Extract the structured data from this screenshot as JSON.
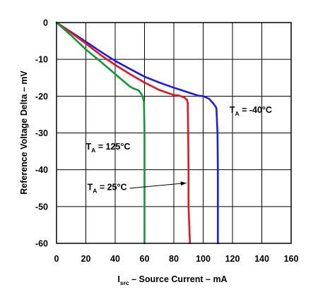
{
  "chart_data": {
    "type": "line",
    "title": "",
    "xlabel": {
      "main": "I",
      "sub": "src",
      "rest": " – Source Current – mA"
    },
    "ylabel": "Reference Voltage Delta – mV",
    "xlim": [
      0,
      160
    ],
    "ylim": [
      -60,
      0
    ],
    "xticks": [
      0,
      20,
      40,
      60,
      80,
      100,
      120,
      140,
      160
    ],
    "yticks": [
      0,
      -10,
      -20,
      -30,
      -40,
      -50,
      -60
    ],
    "grid": true,
    "legend": "none",
    "series": [
      {
        "name": "T_A = -40°C",
        "label_parts": {
          "main": "T",
          "sub": "A",
          "rest": " = -40°C"
        },
        "color": "#1b1bf0",
        "x": [
          0,
          10,
          20,
          30,
          40,
          50,
          60,
          70,
          80,
          90,
          97,
          100,
          104,
          107,
          109,
          109.8,
          110,
          110
        ],
        "y": [
          0,
          -2.6,
          -5.2,
          -7.9,
          -10.4,
          -12.6,
          -14.7,
          -16.3,
          -17.7,
          -19.0,
          -19.9,
          -20.0,
          -20.7,
          -22.0,
          -23.2,
          -30,
          -40,
          -60
        ]
      },
      {
        "name": "T_A = 25°C",
        "label_parts": {
          "main": "T",
          "sub": "A",
          "rest": " = 25°C"
        },
        "color": "#e8141d",
        "x": [
          0,
          10,
          20,
          30,
          40,
          50,
          60,
          70,
          80,
          83,
          87,
          89,
          89.5,
          89.8,
          90,
          90,
          90,
          90.5,
          91
        ],
        "y": [
          0,
          -2.8,
          -5.7,
          -8.8,
          -11.5,
          -14.0,
          -16.3,
          -18.3,
          -19.7,
          -19.8,
          -20.3,
          -21.0,
          -22.0,
          -30,
          -40,
          -47,
          -50,
          -55,
          -60
        ]
      },
      {
        "name": "T_A = 125°C",
        "label_parts": {
          "main": "T",
          "sub": "A",
          "rest": " = 125°C"
        },
        "color": "#109a37",
        "x": [
          0,
          10,
          20,
          30,
          40,
          50,
          53,
          56,
          58,
          59,
          59.6,
          60,
          60,
          60
        ],
        "y": [
          0,
          -3.5,
          -7.3,
          -10.6,
          -14.0,
          -17.4,
          -18.0,
          -18.4,
          -19.5,
          -20.5,
          -21.6,
          -30,
          -40,
          -60
        ]
      }
    ],
    "annotations": [
      {
        "series": 0,
        "at": [
          118,
          -24.5
        ]
      },
      {
        "series": 2,
        "at": [
          20,
          -34.5
        ]
      },
      {
        "series": 1,
        "at": [
          21,
          -45.5
        ],
        "arrow_to": [
          89.5,
          -43.6
        ]
      }
    ]
  }
}
